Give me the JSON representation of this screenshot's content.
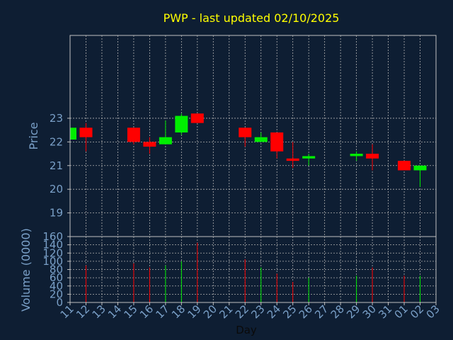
{
  "chart_data": {
    "type": "candlestick",
    "title": "PWP - last updated 02/10/2025",
    "xlabel": "Day",
    "price_panel": {
      "ylabel": "Price",
      "yticks": [
        19,
        20,
        21,
        22,
        23
      ],
      "ylim": [
        18,
        26.5
      ]
    },
    "volume_panel": {
      "ylabel": "Volume (0000)",
      "yticks": [
        0,
        20,
        40,
        60,
        80,
        100,
        120,
        140,
        160
      ],
      "ylim": [
        0,
        160
      ]
    },
    "x_ticks": [
      "11",
      "12",
      "13",
      "14",
      "15",
      "16",
      "17",
      "18",
      "19",
      "20",
      "21",
      "22",
      "23",
      "24",
      "25",
      "26",
      "27",
      "28",
      "29",
      "30",
      "31",
      "01",
      "02",
      "03"
    ],
    "grid": true,
    "colors": {
      "background": "#0e1e33",
      "up": "#00ee00",
      "down": "#ff0000",
      "title": "#ffff00",
      "axis_text": "#7aa0c8",
      "axis_line": "#c0c0c0",
      "grid": "#b0b0b0"
    },
    "candles": [
      {
        "day": "11",
        "open": 22.1,
        "high": 22.6,
        "low": 22.1,
        "close": 22.6,
        "volume": 0
      },
      {
        "day": "12",
        "open": 22.6,
        "high": 22.8,
        "low": 21.6,
        "close": 22.2,
        "volume": 90
      },
      {
        "day": "15",
        "open": 22.6,
        "high": 22.6,
        "low": 21.9,
        "close": 22.0,
        "volume": 95
      },
      {
        "day": "16",
        "open": 22.0,
        "high": 22.2,
        "low": 21.5,
        "close": 21.8,
        "volume": 85
      },
      {
        "day": "17",
        "open": 21.9,
        "high": 22.9,
        "low": 21.9,
        "close": 22.2,
        "volume": 90
      },
      {
        "day": "18",
        "open": 22.4,
        "high": 23.2,
        "low": 22.3,
        "close": 23.1,
        "volume": 100
      },
      {
        "day": "19",
        "open": 23.2,
        "high": 23.2,
        "low": 22.8,
        "close": 22.8,
        "volume": 145
      },
      {
        "day": "22",
        "open": 22.6,
        "high": 22.6,
        "low": 21.8,
        "close": 22.2,
        "volume": 105
      },
      {
        "day": "23",
        "open": 22.0,
        "high": 22.4,
        "low": 22.0,
        "close": 22.2,
        "volume": 85
      },
      {
        "day": "24",
        "open": 22.4,
        "high": 22.4,
        "low": 21.3,
        "close": 21.6,
        "volume": 70
      },
      {
        "day": "25",
        "open": 21.3,
        "high": 22.0,
        "low": 20.9,
        "close": 21.2,
        "volume": 50
      },
      {
        "day": "26",
        "open": 21.3,
        "high": 21.5,
        "low": 21.0,
        "close": 21.4,
        "volume": 60
      },
      {
        "day": "29",
        "open": 21.4,
        "high": 21.6,
        "low": 21.2,
        "close": 21.5,
        "volume": 65
      },
      {
        "day": "30",
        "open": 21.5,
        "high": 21.9,
        "low": 20.8,
        "close": 21.3,
        "volume": 85
      },
      {
        "day": "01",
        "open": 21.2,
        "high": 21.2,
        "low": 20.8,
        "close": 20.8,
        "volume": 65
      },
      {
        "day": "02",
        "open": 20.8,
        "high": 21.0,
        "low": 20.1,
        "close": 21.0,
        "volume": 65
      }
    ]
  }
}
